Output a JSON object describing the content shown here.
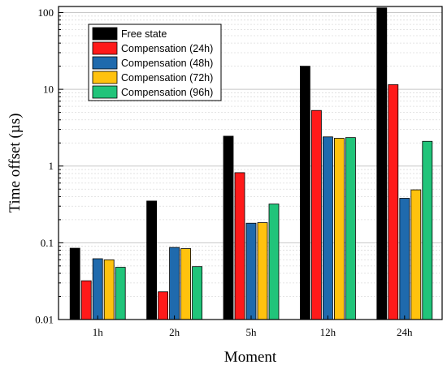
{
  "chart_data": {
    "type": "bar",
    "title": "",
    "xlabel": "Moment",
    "ylabel": "Time offset (µs)",
    "yscale": "log",
    "ylim": [
      0.01,
      120
    ],
    "yticks": [
      {
        "value": 0.01,
        "label": "0.01"
      },
      {
        "value": 0.1,
        "label": "0.1"
      },
      {
        "value": 1,
        "label": "1"
      },
      {
        "value": 10,
        "label": "10"
      },
      {
        "value": 100,
        "label": "100"
      }
    ],
    "grid": true,
    "legend_position": "top-left",
    "categories": [
      "1h",
      "2h",
      "5h",
      "12h",
      "24h"
    ],
    "series": [
      {
        "name": "Free state",
        "color": "#000000",
        "values": [
          0.085,
          0.35,
          2.45,
          20,
          115
        ]
      },
      {
        "name": "Compensation (24h)",
        "color": "#ff1a1a",
        "values": [
          0.032,
          0.023,
          0.82,
          5.3,
          11.5
        ]
      },
      {
        "name": "Compensation (48h)",
        "color": "#1f6aad",
        "values": [
          0.062,
          0.087,
          0.18,
          2.4,
          0.38
        ]
      },
      {
        "name": "Compensation (72h)",
        "color": "#ffc20e",
        "values": [
          0.06,
          0.084,
          0.183,
          2.3,
          0.49
        ]
      },
      {
        "name": "Compensation (96h)",
        "color": "#21c47a",
        "values": [
          0.048,
          0.049,
          0.32,
          2.35,
          2.1
        ]
      }
    ]
  }
}
